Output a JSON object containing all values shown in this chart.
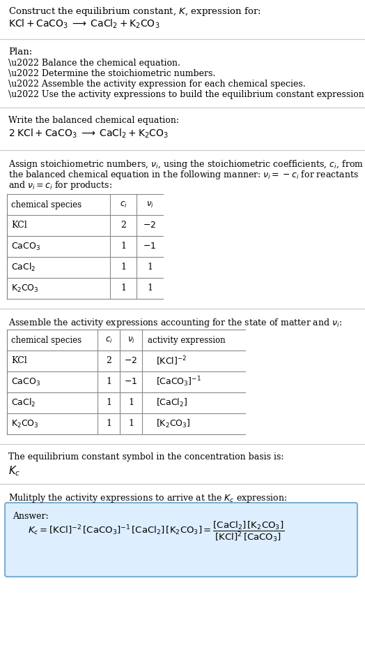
{
  "title_line1": "Construct the equilibrium constant, $K$, expression for:",
  "title_line2": "$\\mathrm{KCl + CaCO_3 \\;\\longrightarrow\\; CaCl_2 + K_2CO_3}$",
  "plan_header": "Plan:",
  "plan_items": [
    "\\u2022 Balance the chemical equation.",
    "\\u2022 Determine the stoichiometric numbers.",
    "\\u2022 Assemble the activity expression for each chemical species.",
    "\\u2022 Use the activity expressions to build the equilibrium constant expression."
  ],
  "balanced_header": "Write the balanced chemical equation:",
  "balanced_eq": "$\\mathrm{2\\;KCl + CaCO_3 \\;\\longrightarrow\\; CaCl_2 + K_2CO_3}$",
  "stoich_intro": "Assign stoichiometric numbers, $\\nu_i$, using the stoichiometric coefficients, $c_i$, from the balanced chemical equation in the following manner: $\\nu_i = -c_i$ for reactants and $\\nu_i = c_i$ for products:",
  "table1_headers": [
    "chemical species",
    "$c_i$",
    "$\\nu_i$"
  ],
  "table1_rows": [
    [
      "KCl",
      "2",
      "$-2$"
    ],
    [
      "$\\mathrm{CaCO_3}$",
      "1",
      "$-1$"
    ],
    [
      "$\\mathrm{CaCl_2}$",
      "1",
      "1"
    ],
    [
      "$\\mathrm{K_2CO_3}$",
      "1",
      "1"
    ]
  ],
  "activity_header": "Assemble the activity expressions accounting for the state of matter and $\\nu_i$:",
  "table2_headers": [
    "chemical species",
    "$c_i$",
    "$\\nu_i$",
    "activity expression"
  ],
  "table2_rows": [
    [
      "KCl",
      "2",
      "$-2$",
      "$[\\mathrm{KCl}]^{-2}$"
    ],
    [
      "$\\mathrm{CaCO_3}$",
      "1",
      "$-1$",
      "$[\\mathrm{CaCO_3}]^{-1}$"
    ],
    [
      "$\\mathrm{CaCl_2}$",
      "1",
      "1",
      "$[\\mathrm{CaCl_2}]$"
    ],
    [
      "$\\mathrm{K_2CO_3}$",
      "1",
      "1",
      "$[\\mathrm{K_2CO_3}]$"
    ]
  ],
  "kc_header": "The equilibrium constant symbol in the concentration basis is:",
  "kc_symbol": "$K_c$",
  "multiply_header": "Mulitply the activity expressions to arrive at the $K_c$ expression:",
  "answer_label": "Answer:",
  "bg_color": "#ffffff",
  "answer_box_color": "#ddeeff",
  "answer_box_border": "#7bafd4",
  "text_color": "#000000",
  "table_border_color": "#888888",
  "divider_color": "#cccccc",
  "font_size": 9.5,
  "small_font_size": 9.0
}
